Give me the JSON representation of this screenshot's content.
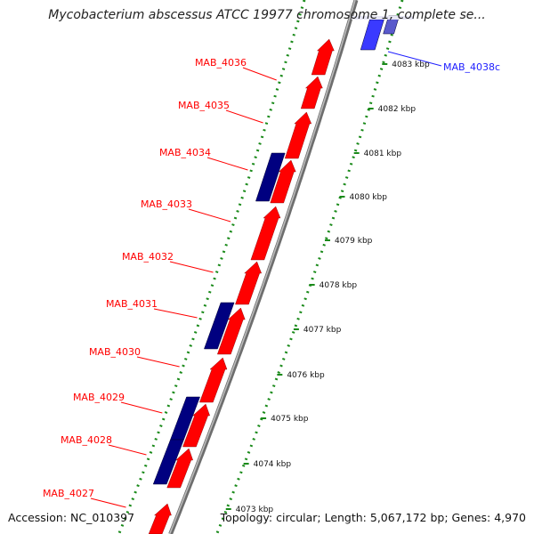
{
  "title": "Mycobacterium abscessus ATCC 19977 chromosome 1, complete se...",
  "footer": {
    "accession": "Accession: NC_010397",
    "summary": "Topology: circular; Length: 5,067,172 bp; Genes: 4,970"
  },
  "colors": {
    "forward_gene": "#ff0000",
    "reverse_gene": "#000080",
    "highlight_gene": "#2020ff",
    "tick": "#1a8a1a",
    "backbone": "#888888"
  },
  "genes": [
    {
      "label": "MAB_4036",
      "color": "#ff0000"
    },
    {
      "label": "MAB_4035",
      "color": "#ff0000"
    },
    {
      "label": "MAB_4034",
      "color": "#ff0000"
    },
    {
      "label": "MAB_4033",
      "color": "#ff0000"
    },
    {
      "label": "MAB_4032",
      "color": "#ff0000"
    },
    {
      "label": "MAB_4031",
      "color": "#ff0000"
    },
    {
      "label": "MAB_4030",
      "color": "#ff0000"
    },
    {
      "label": "MAB_4029",
      "color": "#ff0000"
    },
    {
      "label": "MAB_4028",
      "color": "#ff0000"
    },
    {
      "label": "MAB_4027",
      "color": "#ff0000"
    },
    {
      "label": "MAB_4038c",
      "color": "#0000cc"
    }
  ],
  "ticks": [
    "4083 kbp",
    "4082 kbp",
    "4081 kbp",
    "4080 kbp",
    "4079 kbp",
    "4078 kbp",
    "4077 kbp",
    "4076 kbp",
    "4075 kbp",
    "4074 kbp",
    "4073 kbp"
  ]
}
